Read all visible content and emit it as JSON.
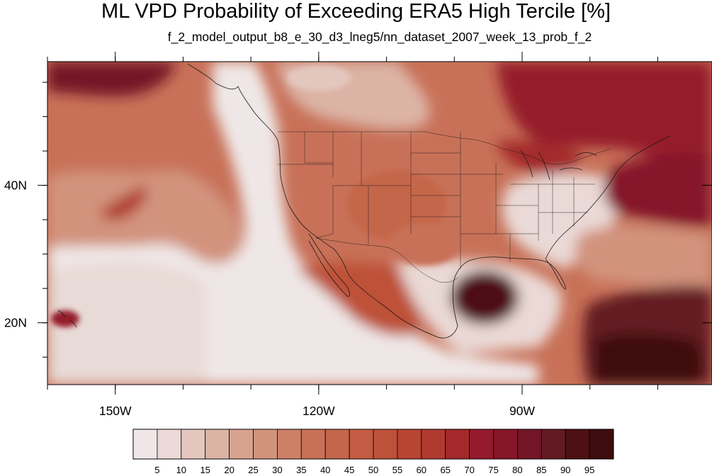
{
  "title": "ML VPD Probability of Exceeding ERA5 High Tercile [%]",
  "subtitle": "f_2_model_output_b8_e_30_d3_lneg5/nn_dataset_2007_week_13_prob_f_2",
  "map": {
    "projection": "cylindrical-equidistant",
    "lon_range": [
      -160,
      -62
    ],
    "lat_range": [
      11,
      58
    ],
    "lon_ticks": [
      {
        "value": -150,
        "label": "150W"
      },
      {
        "value": -120,
        "label": "120W"
      },
      {
        "value": -90,
        "label": "90W"
      }
    ],
    "lat_ticks": [
      {
        "value": 40,
        "label": "40N"
      },
      {
        "value": 20,
        "label": "20N"
      }
    ],
    "minor_lon_step": 10,
    "minor_lat_step": 5,
    "coastlines": true,
    "state_boundaries": true
  },
  "colorbar": {
    "orientation": "horizontal",
    "placement": "bottom",
    "levels": [
      5,
      10,
      15,
      20,
      25,
      30,
      35,
      40,
      45,
      50,
      55,
      60,
      65,
      70,
      75,
      80,
      85,
      90,
      95
    ],
    "labels": [
      "5",
      "10",
      "15",
      "20",
      "25",
      "30",
      "35",
      "40",
      "45",
      "50",
      "55",
      "60",
      "65",
      "70",
      "75",
      "80",
      "85",
      "90",
      "95"
    ],
    "colors": [
      "#efe7e7",
      "#ead9d6",
      "#e3c7bf",
      "#dcb4a6",
      "#d7a38f",
      "#d2937d",
      "#cc8166",
      "#c87158",
      "#c4664a",
      "#c25c42",
      "#be5139",
      "#b84432",
      "#b03a2f",
      "#a3292b",
      "#951a2c",
      "#85162a",
      "#741527",
      "#641a23",
      "#4d1014",
      "#3d0c0f"
    ]
  }
}
